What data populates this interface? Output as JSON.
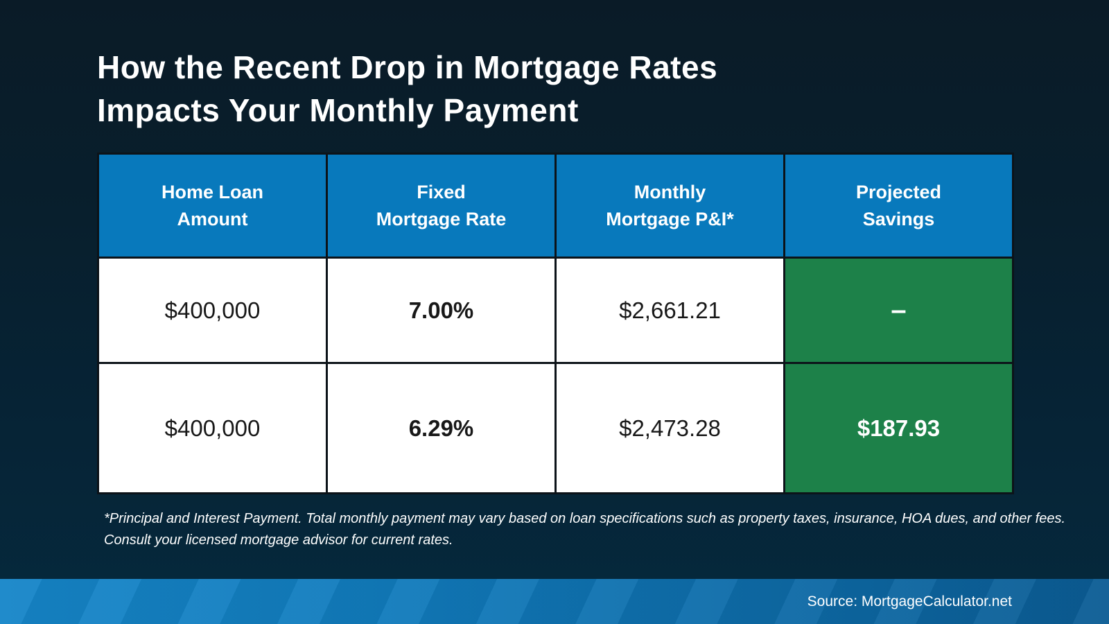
{
  "title": {
    "line1": "How the Recent Drop in Mortgage Rates",
    "line2": "Impacts Your Monthly Payment"
  },
  "table": {
    "columns": [
      {
        "label_line1": "Home Loan",
        "label_line2": "Amount"
      },
      {
        "label_line1": "Fixed",
        "label_line2": "Mortgage Rate"
      },
      {
        "label_line1": "Monthly",
        "label_line2": "Mortgage P&I*"
      },
      {
        "label_line1": "Projected",
        "label_line2": "Savings"
      }
    ],
    "rows": [
      {
        "loan_amount": "$400,000",
        "rate": "7.00%",
        "payment": "$2,661.21",
        "savings": "–"
      },
      {
        "loan_amount": "$400,000",
        "rate": "6.29%",
        "payment": "$2,473.28",
        "savings": "$187.93"
      }
    ]
  },
  "footnote": {
    "line1": "*Principal and Interest Payment. Total monthly payment may vary based on loan specifications such as property taxes, insurance, HOA dues, and other fees.",
    "line2": "Consult your licensed mortgage advisor for current rates."
  },
  "footer": {
    "source": "Source: MortgageCalculator.net"
  },
  "colors": {
    "header_blue": "#0879bc",
    "savings_green": "#1d8149",
    "background_top": "#0a1b27",
    "background_bottom": "#05293d",
    "footer_gradient_left": "#1686c9",
    "footer_gradient_right": "#0b5c94",
    "border_black": "#0c1319",
    "cell_white": "#ffffff"
  },
  "chart_data": {
    "type": "table",
    "title": "How the Recent Drop in Mortgage Rates Impacts Your Monthly Payment",
    "columns": [
      "Home Loan Amount",
      "Fixed Mortgage Rate",
      "Monthly Mortgage P&I*",
      "Projected Savings"
    ],
    "rows": [
      [
        "$400,000",
        "7.00%",
        "$2,661.21",
        "–"
      ],
      [
        "$400,000",
        "6.29%",
        "$2,473.28",
        "$187.93"
      ]
    ],
    "footnote": "*Principal and Interest Payment. Total monthly payment may vary based on loan specifications such as property taxes, insurance, HOA dues, and other fees. Consult your licensed mortgage advisor for current rates.",
    "source": "Source: MortgageCalculator.net"
  }
}
